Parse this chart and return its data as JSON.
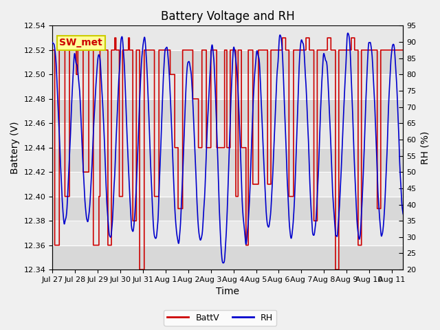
{
  "title": "Battery Voltage and RH",
  "xlabel": "Time",
  "ylabel_left": "Battery (V)",
  "ylabel_right": "RH (%)",
  "annotation": "SW_met",
  "left_ylim": [
    12.34,
    12.54
  ],
  "right_ylim": [
    20,
    95
  ],
  "left_yticks": [
    12.34,
    12.36,
    12.38,
    12.4,
    12.42,
    12.44,
    12.46,
    12.48,
    12.5,
    12.52,
    12.54
  ],
  "right_yticks": [
    20,
    25,
    30,
    35,
    40,
    45,
    50,
    55,
    60,
    65,
    70,
    75,
    80,
    85,
    90,
    95
  ],
  "x_tick_labels": [
    "Jul 27",
    "Jul 28",
    "Jul 29",
    "Jul 30",
    "Jul 31",
    "Aug 1",
    "Aug 2",
    "Aug 3",
    "Aug 4",
    "Aug 5",
    "Aug 6",
    "Aug 7",
    "Aug 8",
    "Aug 9",
    "Aug 10",
    "Aug 11"
  ],
  "battv_color": "#cc0000",
  "rh_color": "#0000cc",
  "fig_bg_color": "#f0f0f0",
  "plot_bg_light": "#e8e8e8",
  "plot_bg_dark": "#d8d8d8",
  "legend_battv": "BattV",
  "legend_rh": "RH",
  "title_fontsize": 12,
  "axis_label_fontsize": 10,
  "tick_fontsize": 8,
  "annotation_fontsize": 10
}
